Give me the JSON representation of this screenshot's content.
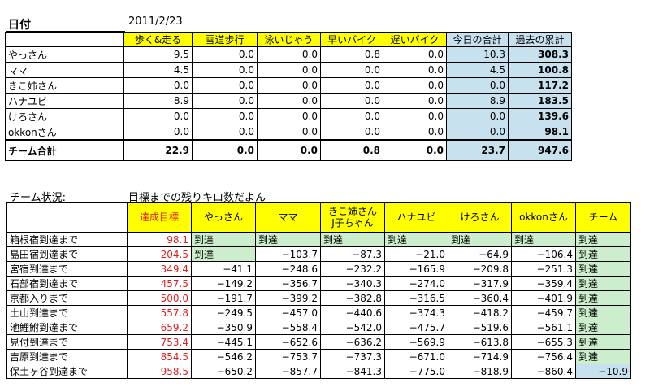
{
  "date_label": "日付",
  "date_value": "2011/2/23",
  "summary": {
    "corner": "",
    "headers": [
      "歩く&走る",
      "雪道歩行",
      "泳いじゃう",
      "早いバイク",
      "遅いバイク",
      "今日の合計",
      "過去の累計"
    ],
    "rows": [
      {
        "name": "やっさん",
        "vals": [
          "9.5",
          "0.0",
          "0.0",
          "0.8",
          "0.0",
          "10.3",
          "308.3"
        ]
      },
      {
        "name": "ママ",
        "vals": [
          "4.5",
          "0.0",
          "0.0",
          "0.0",
          "0.0",
          "4.5",
          "100.8"
        ]
      },
      {
        "name": "きこ姉さん",
        "vals": [
          "0.0",
          "0.0",
          "0.0",
          "0.0",
          "0.0",
          "0.0",
          "117.2"
        ]
      },
      {
        "name": "ハナユビ",
        "vals": [
          "8.9",
          "0.0",
          "0.0",
          "0.0",
          "0.0",
          "8.9",
          "183.5"
        ]
      },
      {
        "name": "けろさん",
        "vals": [
          "0.0",
          "0.0",
          "0.0",
          "0.0",
          "0.0",
          "0.0",
          "139.6"
        ]
      },
      {
        "name": "okkonさん",
        "vals": [
          "0.0",
          "0.0",
          "0.0",
          "0.0",
          "0.0",
          "0.0",
          "98.1"
        ]
      }
    ],
    "total": {
      "name": "チーム合計",
      "vals": [
        "22.9",
        "0.0",
        "0.0",
        "0.8",
        "0.0",
        "23.7",
        "947.6"
      ]
    }
  },
  "team_status_label": "チーム状況:",
  "team_status_sub": "目標までの残りキロ数だよん",
  "progress": {
    "headers": [
      "",
      "達成目標",
      "やっさん",
      "ママ",
      "きこ姉さん\nJ子ちゃん",
      "ハナユビ",
      "けろさん",
      "okkonさん",
      "チーム"
    ],
    "rows": [
      {
        "name": "箱根宿到達まで",
        "target": "98.1",
        "vals": [
          "到達",
          "到達",
          "到達",
          "到達",
          "到達",
          "到達",
          "到達"
        ]
      },
      {
        "name": "島田宿到達まで",
        "target": "204.5",
        "vals": [
          "到達",
          "−103.7",
          "−87.3",
          "−21.0",
          "−64.9",
          "−106.4",
          "到達"
        ]
      },
      {
        "name": "宮宿到達まで",
        "target": "349.4",
        "vals": [
          "−41.1",
          "−248.6",
          "−232.2",
          "−165.9",
          "−209.8",
          "−251.3",
          "到達"
        ]
      },
      {
        "name": "石部宿到達まで",
        "target": "457.5",
        "vals": [
          "−149.2",
          "−356.7",
          "−340.3",
          "−274.0",
          "−317.9",
          "−359.4",
          "到達"
        ]
      },
      {
        "name": "京都入りまで",
        "target": "500.0",
        "vals": [
          "−191.7",
          "−399.2",
          "−382.8",
          "−316.5",
          "−360.4",
          "−401.9",
          "到達"
        ]
      },
      {
        "name": "土山到達まで",
        "target": "557.8",
        "vals": [
          "−249.5",
          "−457.0",
          "−440.6",
          "−374.3",
          "−418.2",
          "−459.7",
          "到達"
        ]
      },
      {
        "name": "池鯉鮒到達まで",
        "target": "659.2",
        "vals": [
          "−350.9",
          "−558.4",
          "−542.0",
          "−475.7",
          "−519.6",
          "−561.1",
          "到達"
        ]
      },
      {
        "name": "見付到達まで",
        "target": "753.4",
        "vals": [
          "−445.1",
          "−652.6",
          "−636.2",
          "−569.9",
          "−613.8",
          "−655.3",
          "到達"
        ]
      },
      {
        "name": "吉原到達まで",
        "target": "854.5",
        "vals": [
          "−546.2",
          "−753.7",
          "−737.3",
          "−671.0",
          "−714.9",
          "−756.4",
          "到達"
        ]
      },
      {
        "name": "保土ヶ谷到達まで",
        "target": "958.5",
        "vals": [
          "−650.2",
          "−857.7",
          "−841.3",
          "−775.0",
          "−818.9",
          "−860.4",
          "−10.9"
        ]
      }
    ]
  }
}
